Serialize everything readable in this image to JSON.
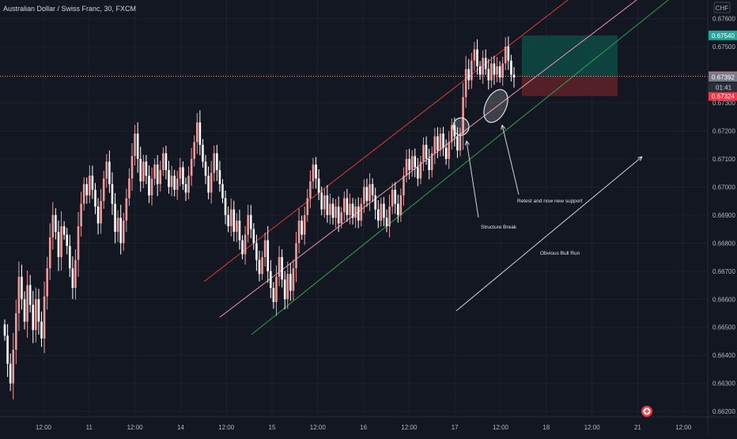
{
  "header": {
    "symbol_title": "Australian Dollar / Swiss Franc, 30, FXCM",
    "currency_label": "CHF"
  },
  "countdown": "01:41",
  "colors": {
    "background": "#131722",
    "bull": "#ef9a9a",
    "bear": "#ffffff",
    "upper_channel": "#e53935",
    "mid_channel": "#f48fb1",
    "lower_channel": "#2e9e4f",
    "target_zone": "#0e4a44",
    "stop_zone": "#5b2128"
  },
  "chart_data": {
    "type": "candlestick",
    "y_ticks": [
      "0.67600",
      "0.67500",
      "0.67400",
      "0.67300",
      "0.67200",
      "0.67100",
      "0.67000",
      "0.66900",
      "0.66800",
      "0.66700",
      "0.66600",
      "0.66500",
      "0.66400",
      "0.66300",
      "0.66200"
    ],
    "x_ticks": [
      "12:00",
      "11",
      "12:00",
      "14",
      "12:00",
      "15",
      "12:00",
      "16",
      "12:00",
      "17",
      "12:00",
      "18",
      "12:00",
      "21",
      "12:00"
    ],
    "ylim": [
      0.66185,
      0.67645
    ],
    "price_labels": [
      {
        "value": 0.6754,
        "text": "0.67540",
        "color": "#26a69a"
      },
      {
        "value": 0.67394,
        "text": "0.67394",
        "color": "#ef9a9a"
      },
      {
        "value": 0.67392,
        "text": "0.67392",
        "color": "#787b86"
      },
      {
        "value": 0.67324,
        "text": "0.67324",
        "color": "#f23645"
      }
    ],
    "current_price": 0.67394,
    "closes": [
      0.6647,
      0.6637,
      0.663,
      0.6642,
      0.6655,
      0.6668,
      0.666,
      0.6652,
      0.6665,
      0.6658,
      0.6649,
      0.666,
      0.6652,
      0.6646,
      0.6661,
      0.6671,
      0.6682,
      0.669,
      0.6684,
      0.6675,
      0.6686,
      0.6683,
      0.6679,
      0.6671,
      0.6664,
      0.6674,
      0.6686,
      0.6694,
      0.6701,
      0.6697,
      0.6704,
      0.6699,
      0.6693,
      0.6687,
      0.6695,
      0.6703,
      0.6709,
      0.6701,
      0.6694,
      0.6684,
      0.6689,
      0.668,
      0.6688,
      0.6696,
      0.6703,
      0.6711,
      0.6719,
      0.671,
      0.6702,
      0.6709,
      0.6704,
      0.6697,
      0.6703,
      0.6708,
      0.6701,
      0.6706,
      0.6712,
      0.6706,
      0.67,
      0.6704,
      0.6699,
      0.6703,
      0.6707,
      0.6701,
      0.6698,
      0.6704,
      0.671,
      0.6716,
      0.6723,
      0.6715,
      0.6709,
      0.6704,
      0.6698,
      0.6705,
      0.6712,
      0.6706,
      0.6701,
      0.6696,
      0.669,
      0.6686,
      0.6692,
      0.6684,
      0.6688,
      0.6681,
      0.6676,
      0.6683,
      0.669,
      0.6685,
      0.668,
      0.6674,
      0.6669,
      0.6675,
      0.6681,
      0.667,
      0.6664,
      0.6659,
      0.6668,
      0.6675,
      0.6667,
      0.666,
      0.6669,
      0.6663,
      0.6671,
      0.668,
      0.6688,
      0.6683,
      0.669,
      0.6696,
      0.6702,
      0.6708,
      0.6703,
      0.6698,
      0.6692,
      0.6697,
      0.669,
      0.6694,
      0.6689,
      0.6693,
      0.6687,
      0.6691,
      0.6696,
      0.669,
      0.6694,
      0.6689,
      0.6693,
      0.6688,
      0.6694,
      0.67,
      0.6695,
      0.6701,
      0.6697,
      0.6692,
      0.6688,
      0.6694,
      0.6689,
      0.6686,
      0.6693,
      0.6699,
      0.6694,
      0.669,
      0.6697,
      0.6704,
      0.671,
      0.6706,
      0.6711,
      0.6707,
      0.6703,
      0.6709,
      0.6715,
      0.671,
      0.6706,
      0.6712,
      0.6718,
      0.6713,
      0.6719,
      0.6714,
      0.671,
      0.6716,
      0.6722,
      0.6718,
      0.6713,
      0.6719,
      0.6732,
      0.6742,
      0.6738,
      0.6745,
      0.6749,
      0.6743,
      0.674,
      0.6746,
      0.6742,
      0.6738,
      0.6744,
      0.674,
      0.6743,
      0.6739,
      0.6744,
      0.675,
      0.6745,
      0.674,
      0.6739
    ],
    "annotations": [
      {
        "text": "Structure Break"
      },
      {
        "text": "Retest and now new support"
      },
      {
        "text": "Obvious Bull Run"
      }
    ],
    "position": {
      "entry": 0.67394,
      "target": 0.6754,
      "stop": 0.67324
    }
  }
}
